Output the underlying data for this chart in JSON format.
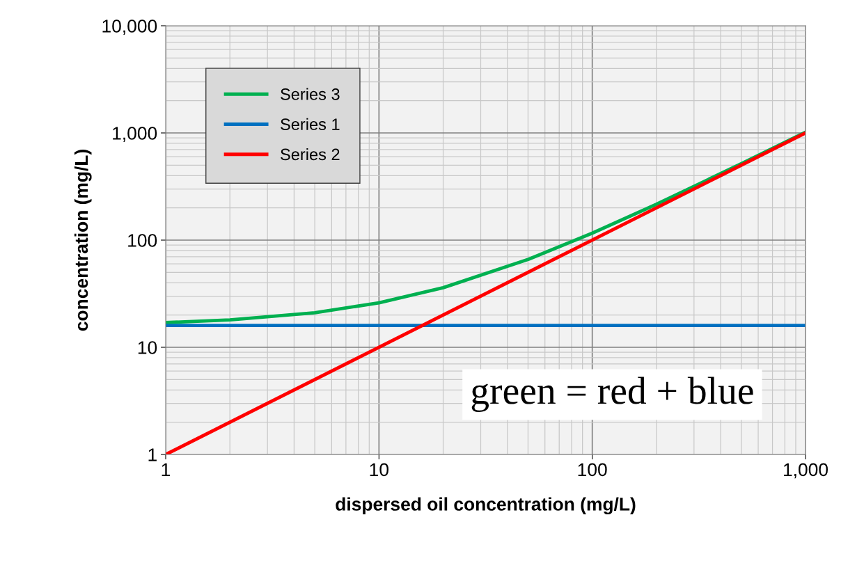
{
  "chart_data": {
    "type": "line",
    "xlabel": "dispersed oil concentration (mg/L)",
    "ylabel": "concentration (mg/L)",
    "log": "xy",
    "grid": true,
    "legend": "top left",
    "line_style": "solid",
    "marker": "none",
    "xlim": [
      1,
      1000
    ],
    "ylim": [
      1,
      10000
    ],
    "xticks": [
      1,
      10,
      100,
      {
        "value": 1000,
        "label": "1,000"
      }
    ],
    "yticks": [
      1,
      10,
      100,
      {
        "value": 1000,
        "label": "1,000"
      },
      {
        "value": 10000,
        "label": "10,000"
      }
    ],
    "series": [
      {
        "name": "Series 3",
        "color": "#00b050",
        "x": [
          1,
          2,
          5,
          10,
          20,
          50,
          100,
          200,
          500,
          1000
        ],
        "values": [
          17,
          18,
          21,
          26,
          36,
          66,
          116,
          216,
          516,
          1016
        ]
      },
      {
        "name": "Series 1",
        "color": "#0070c0",
        "x": [
          1,
          1000
        ],
        "values": [
          16,
          16
        ]
      },
      {
        "name": "Series 2",
        "color": "#ff0000",
        "x": [
          1,
          1000
        ],
        "values": [
          1,
          1000
        ]
      }
    ],
    "annotations": [
      "green = red + blue"
    ]
  }
}
